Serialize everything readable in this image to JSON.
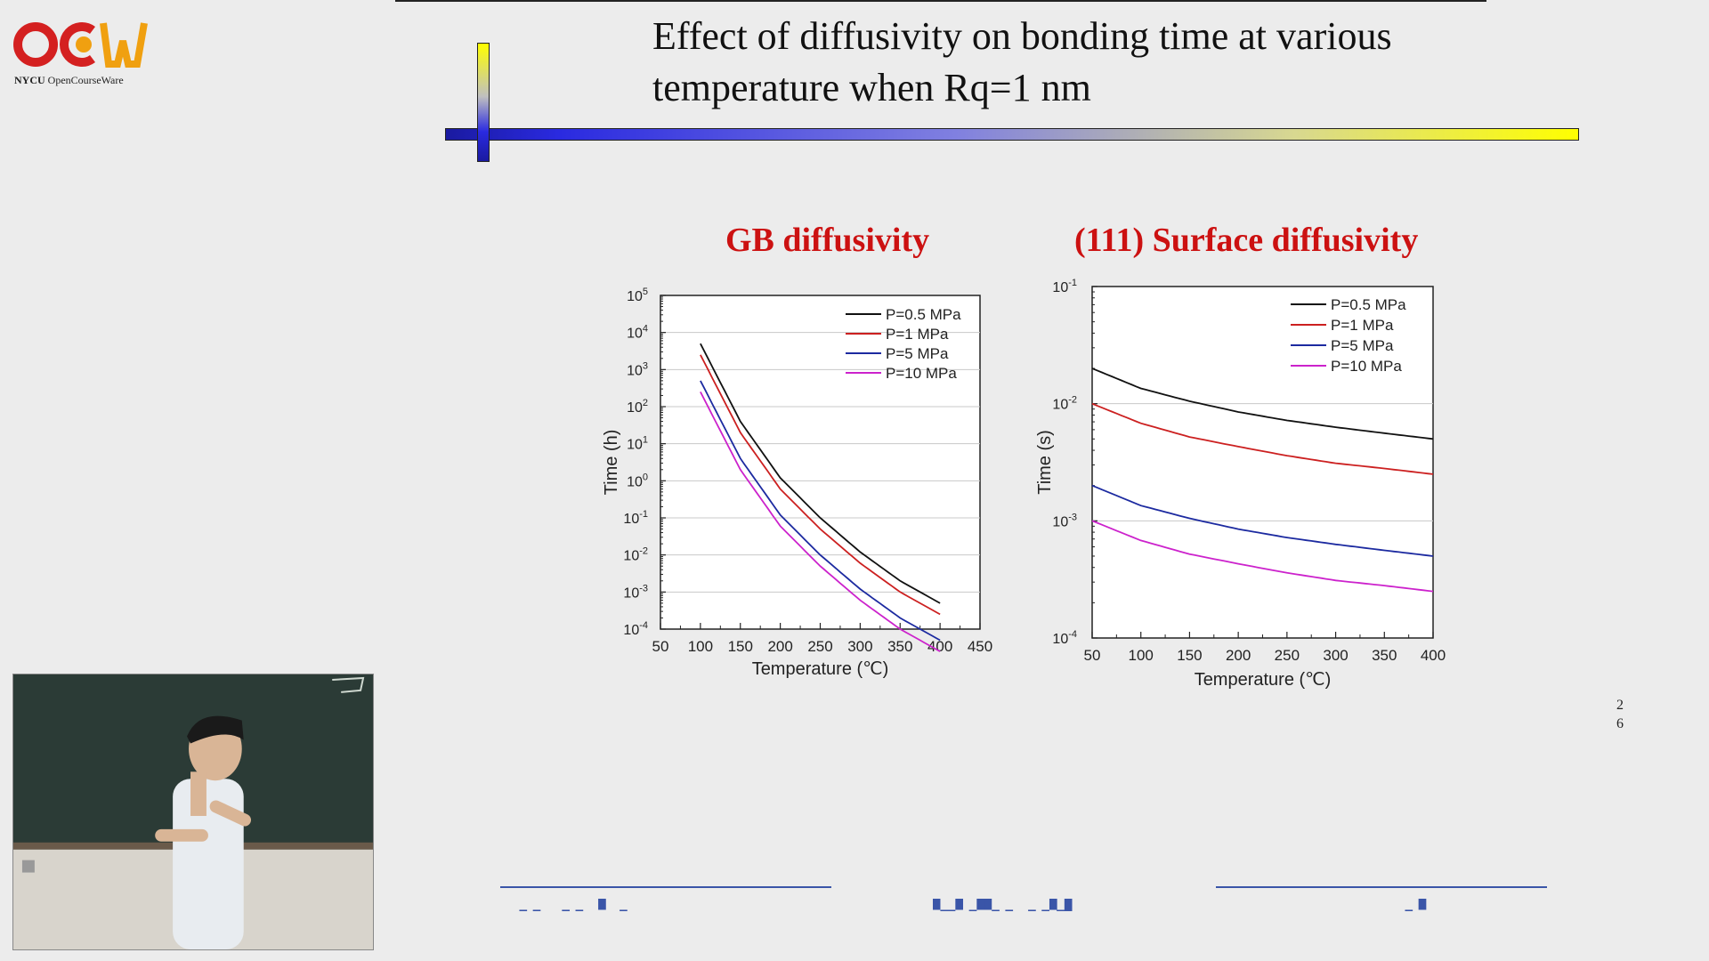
{
  "logo": {
    "brand": "NYCU",
    "caption": "OpenCourseWare"
  },
  "slide": {
    "title_line1": "Effect of diffusivity on bonding time at various",
    "title_line2": "temperature when Rq=1 nm",
    "page_number_line1": "2",
    "page_number_line2": "6"
  },
  "colors": {
    "p0_5": "#111111",
    "p1": "#cc2020",
    "p5": "#1c2aa0",
    "p10": "#cc22cc",
    "title_red": "#cc1111",
    "footer_blue": "#3a55a8"
  },
  "chart_data": [
    {
      "type": "line",
      "title": "GB diffusivity",
      "xlabel": "Temperature (℃)",
      "ylabel": "Time (h)",
      "xlim": [
        50,
        450
      ],
      "ylim": [
        0.0001,
        100000
      ],
      "yscale": "log",
      "xticks": [
        "50",
        "100",
        "150",
        "200",
        "250",
        "300",
        "350",
        "400",
        "450"
      ],
      "yticks": [
        {
          "base": "10",
          "exp": "5"
        },
        {
          "base": "10",
          "exp": "4"
        },
        {
          "base": "10",
          "exp": "3"
        },
        {
          "base": "10",
          "exp": "2"
        },
        {
          "base": "10",
          "exp": "1"
        },
        {
          "base": "10",
          "exp": "0"
        },
        {
          "base": "10",
          "exp": "-1"
        },
        {
          "base": "10",
          "exp": "-2"
        },
        {
          "base": "10",
          "exp": "-3"
        },
        {
          "base": "10",
          "exp": "-4"
        }
      ],
      "grid": "horizontal",
      "legend": "top-right",
      "series": [
        {
          "name": "P=0.5 MPa",
          "color": "#111111",
          "x": [
            100,
            150,
            200,
            250,
            300,
            350,
            400
          ],
          "y": [
            5000,
            40,
            1.2,
            0.1,
            0.012,
            0.002,
            0.0005
          ]
        },
        {
          "name": "P=1 MPa",
          "color": "#cc2020",
          "x": [
            100,
            150,
            200,
            250,
            300,
            350,
            400
          ],
          "y": [
            2500,
            20,
            0.6,
            0.05,
            0.006,
            0.001,
            0.00025
          ]
        },
        {
          "name": "P=5 MPa",
          "color": "#1c2aa0",
          "x": [
            100,
            150,
            200,
            250,
            300,
            350,
            400
          ],
          "y": [
            500,
            4,
            0.12,
            0.01,
            0.0012,
            0.0002,
            5e-05
          ]
        },
        {
          "name": "P=10 MPa",
          "color": "#cc22cc",
          "x": [
            100,
            150,
            200,
            250,
            300,
            350,
            400
          ],
          "y": [
            250,
            2,
            0.06,
            0.005,
            0.0006,
            0.0001,
            2.5e-05
          ]
        }
      ]
    },
    {
      "type": "line",
      "title": "(111) Surface diffusivity",
      "xlabel": "Temperature (℃)",
      "ylabel": "Time (s)",
      "xlim": [
        50,
        400
      ],
      "ylim": [
        0.0001,
        0.1
      ],
      "yscale": "log",
      "xticks": [
        "50",
        "100",
        "150",
        "200",
        "250",
        "300",
        "350",
        "400"
      ],
      "yticks": [
        {
          "base": "10",
          "exp": "-1"
        },
        {
          "base": "10",
          "exp": "-2"
        },
        {
          "base": "10",
          "exp": "-3"
        },
        {
          "base": "10",
          "exp": "-4"
        }
      ],
      "grid": "horizontal",
      "legend": "top-right",
      "series": [
        {
          "name": "P=0.5 MPa",
          "color": "#111111",
          "x": [
            50,
            100,
            150,
            200,
            250,
            300,
            350,
            400
          ],
          "y": [
            0.02,
            0.0135,
            0.0105,
            0.0085,
            0.0072,
            0.0063,
            0.0056,
            0.005
          ]
        },
        {
          "name": "P=1 MPa",
          "color": "#cc2020",
          "x": [
            50,
            100,
            150,
            200,
            250,
            300,
            350,
            400
          ],
          "y": [
            0.01,
            0.0068,
            0.0052,
            0.0043,
            0.0036,
            0.0031,
            0.0028,
            0.0025
          ]
        },
        {
          "name": "P=5 MPa",
          "color": "#1c2aa0",
          "x": [
            50,
            100,
            150,
            200,
            250,
            300,
            350,
            400
          ],
          "y": [
            0.002,
            0.00135,
            0.00105,
            0.00085,
            0.00072,
            0.00063,
            0.00056,
            0.0005
          ]
        },
        {
          "name": "P=10 MPa",
          "color": "#cc22cc",
          "x": [
            50,
            100,
            150,
            200,
            250,
            300,
            350,
            400
          ],
          "y": [
            0.001,
            0.00068,
            0.00052,
            0.00043,
            0.00036,
            0.00031,
            0.00028,
            0.00025
          ]
        }
      ]
    }
  ]
}
